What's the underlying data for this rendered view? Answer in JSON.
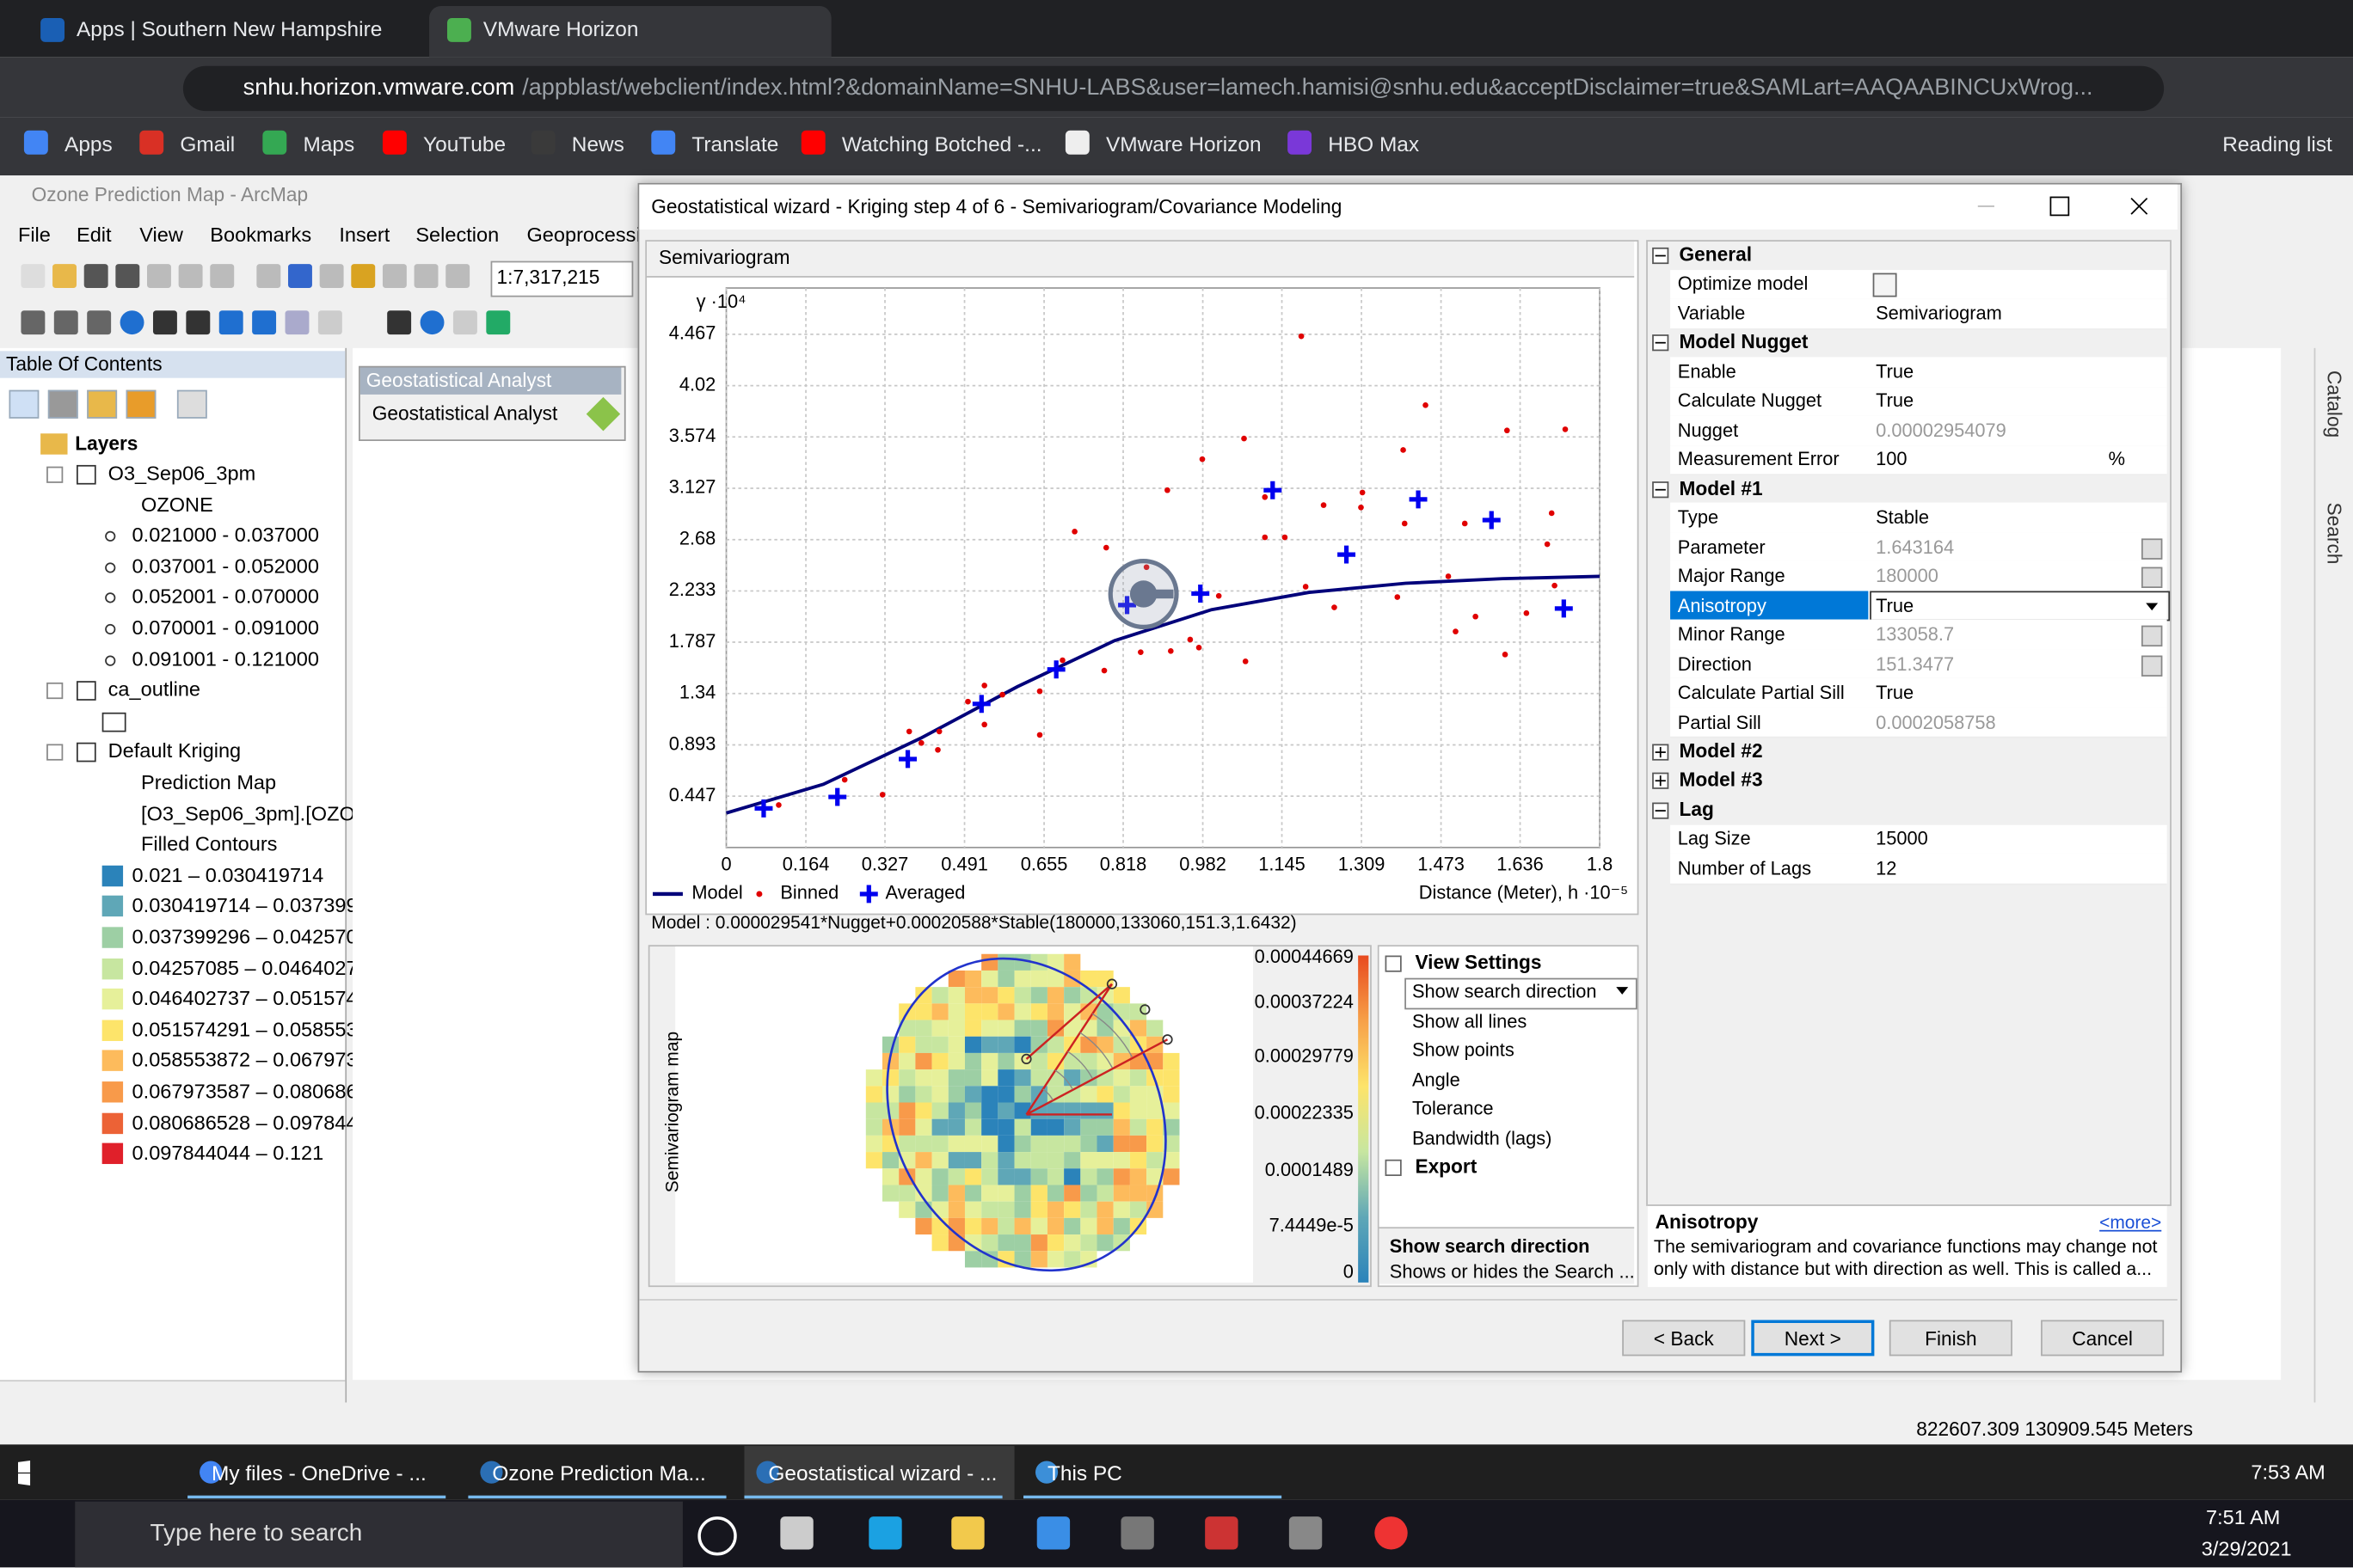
{
  "browser": {
    "tabs": [
      {
        "title": "Apps | Southern New Hampshire"
      },
      {
        "title": "VMware Horizon",
        "active": true
      }
    ],
    "url_host": "snhu.horizon.vmware.com",
    "url_path": "/appblast/webclient/index.html?&domainName=SNHU-LABS&user=lamech.hamisi@snhu.edu&acceptDisclaimer=true&SAMLart=AAQAABINCUxWrog...",
    "bookmarks": [
      "Apps",
      "Gmail",
      "Maps",
      "YouTube",
      "News",
      "Translate",
      "Watching Botched -...",
      "VMware Horizon",
      "HBO Max"
    ],
    "reading_list": "Reading list"
  },
  "arcmap": {
    "title": "Ozone Prediction Map - ArcMap",
    "menu": [
      "File",
      "Edit",
      "View",
      "Bookmarks",
      "Insert",
      "Selection",
      "Geoprocessi"
    ],
    "scale": "1:7,317,215",
    "ga_toolbar": {
      "title": "Geostatistical Analyst",
      "button": "Geostatistical Analyst"
    },
    "toc": {
      "title": "Table Of Contents",
      "root": "Layers",
      "layers": [
        {
          "name_lines": [
            "O3_Sep06_3pm"
          ],
          "field": "OZONE",
          "classes": [
            {
              "label": "0.021000 - 0.037000"
            },
            {
              "label": "0.037001 - 0.052000"
            },
            {
              "label": "0.052001 - 0.070000"
            },
            {
              "label": "0.070001 - 0.091000"
            },
            {
              "label": "0.091001 - 0.121000"
            }
          ]
        },
        {
          "name_lines": [
            "ca_outline"
          ],
          "outline": true
        },
        {
          "name_lines": [
            "Default Kriging",
            "Prediction Map",
            "[O3_Sep06_3pm].[OZO"
          ],
          "field": "Filled Contours",
          "classes": [
            {
              "label": "0.021 – 0.030419714",
              "color": "#2b83ba"
            },
            {
              "label": "0.030419714 – 0.037399",
              "color": "#5fa7b7"
            },
            {
              "label": "0.037399296 – 0.042570",
              "color": "#9dcfa4"
            },
            {
              "label": "0.04257085 – 0.0464027",
              "color": "#c7e6a0"
            },
            {
              "label": "0.046402737 – 0.051574",
              "color": "#e6f09a"
            },
            {
              "label": "0.051574291 – 0.058553",
              "color": "#fde46a"
            },
            {
              "label": "0.058553872 – 0.067973",
              "color": "#fdbb5c"
            },
            {
              "label": "0.067973587 – 0.080686",
              "color": "#f89a4a"
            },
            {
              "label": "0.080686528 – 0.097844",
              "color": "#ec6236"
            },
            {
              "label": "0.097844044 – 0.121",
              "color": "#e0202a"
            }
          ]
        }
      ]
    },
    "side_tabs": [
      "Catalog",
      "Search"
    ],
    "status": "822607.309  130909.545 Meters"
  },
  "wizard": {
    "title": "Geostatistical wizard - Kriging step 4 of 6 - Semivariogram/Covariance Modeling",
    "panel": "Semivariogram",
    "semivariogram": {
      "type": "scatter",
      "y_label": "γ ·10⁴",
      "x_label": "Distance (Meter), h ·10⁻⁵",
      "xlim": [
        0,
        1.8
      ],
      "ylim": [
        0,
        4.87
      ],
      "xticks": [
        0,
        0.164,
        0.327,
        0.491,
        0.655,
        0.818,
        0.982,
        1.145,
        1.309,
        1.473,
        1.636,
        1.8
      ],
      "yticks": [
        0.447,
        0.893,
        1.34,
        1.787,
        2.233,
        2.68,
        3.127,
        3.574,
        4.02,
        4.467
      ],
      "grid": true,
      "series": [
        {
          "name": "Model",
          "color": "#00007a",
          "marker": "line",
          "x": [
            0,
            0.2,
            0.4,
            0.6,
            0.8,
            1.0,
            1.2,
            1.4,
            1.6,
            1.8
          ],
          "values": [
            0.3,
            0.55,
            0.95,
            1.4,
            1.8,
            2.07,
            2.22,
            2.3,
            2.34,
            2.36
          ]
        },
        {
          "name": "Binned",
          "color": "#e00000",
          "marker": "dot",
          "x": [
            0.108,
            0.244,
            0.322,
            0.377,
            0.402,
            0.439,
            0.436,
            0.532,
            0.532,
            0.498,
            0.569,
            0.646,
            0.646,
            0.693,
            0.718,
            0.783,
            0.779,
            0.866,
            0.854,
            0.909,
            0.916,
            0.956,
            0.981,
            0.974,
            1.015,
            1.067,
            1.07,
            1.11,
            1.11,
            1.151,
            1.185,
            1.194,
            1.231,
            1.253,
            1.311,
            1.308,
            1.383,
            1.395,
            1.398,
            1.441,
            1.488,
            1.503,
            1.522,
            1.544,
            1.609,
            1.605,
            1.649,
            1.701,
            1.707,
            1.729,
            1.692
          ],
          "values": [
            0.37,
            0.59,
            0.46,
            1.01,
            0.91,
            1.01,
            0.85,
            1.41,
            1.07,
            1.27,
            1.33,
            0.98,
            1.36,
            1.63,
            2.75,
            2.61,
            1.54,
            2.44,
            1.7,
            3.11,
            1.71,
            1.81,
            3.38,
            1.74,
            2.19,
            3.56,
            1.62,
            3.05,
            2.7,
            2.7,
            4.45,
            2.27,
            2.98,
            2.09,
            3.09,
            2.96,
            2.18,
            3.46,
            2.82,
            3.85,
            2.36,
            1.88,
            2.82,
            2.01,
            3.63,
            1.68,
            2.04,
            2.91,
            2.28,
            3.64,
            2.64
          ]
        },
        {
          "name": "Averaged",
          "color": "#0000ee",
          "marker": "cross",
          "x": [
            0.077,
            0.229,
            0.374,
            0.526,
            0.68,
            0.826,
            0.977,
            1.126,
            1.278,
            1.426,
            1.577,
            1.726
          ],
          "values": [
            0.34,
            0.44,
            0.77,
            1.25,
            1.55,
            2.11,
            2.21,
            3.11,
            2.55,
            3.03,
            2.85,
            2.08
          ]
        }
      ]
    },
    "model_formula": "Model : 0.000029541*Nugget+0.00020588*Stable(180000,133060,151.3,1.6432)",
    "map": {
      "axis_label": "Semivariogram map",
      "colorbar_labels": [
        "0.00044669",
        "0.00037224",
        "0.00029779",
        "0.00022335",
        "0.0001489",
        "7.4449e-5",
        "0"
      ]
    },
    "view_settings": {
      "title": "View Settings",
      "rows": [
        {
          "name": "Show search direction",
          "editor": "dropdown"
        },
        {
          "name": "Show all lines"
        },
        {
          "name": "Show points"
        },
        {
          "name": "Angle"
        },
        {
          "name": "Tolerance"
        },
        {
          "name": "Bandwidth (lags)"
        }
      ],
      "export": "Export",
      "help_title": "Show search direction",
      "help_text": "Shows or hides the Search ..."
    },
    "properties": [
      {
        "title": "General",
        "expanded": true,
        "rows": [
          {
            "name": "Optimize model",
            "editor": "optimize"
          },
          {
            "name": "Variable",
            "value": "Semivariogram"
          }
        ]
      },
      {
        "title": "Model Nugget",
        "expanded": true,
        "rows": [
          {
            "name": "Enable",
            "value": "True"
          },
          {
            "name": "Calculate Nugget",
            "value": "True"
          },
          {
            "name": "Nugget",
            "value": "0.00002954079",
            "disabled": true
          },
          {
            "name": "Measurement Error",
            "value": "100",
            "unit": "%"
          }
        ]
      },
      {
        "title": "Model #1",
        "expanded": true,
        "rows": [
          {
            "name": "Type",
            "value": "Stable"
          },
          {
            "name": "Parameter",
            "value": "1.643164",
            "disabled": true,
            "editor": "calculator"
          },
          {
            "name": "Major Range",
            "value": "180000",
            "disabled": true,
            "editor": "calculator"
          },
          {
            "name": "Anisotropy",
            "value": "True",
            "selected": true,
            "editor": "dropdown"
          },
          {
            "name": "Minor Range",
            "value": "133058.7",
            "disabled": true,
            "editor": "calculator"
          },
          {
            "name": "Direction",
            "value": "151.3477",
            "disabled": true,
            "editor": "calculator"
          },
          {
            "name": "Calculate Partial Sill",
            "value": "True"
          },
          {
            "name": "Partial Sill",
            "value": "0.0002058758",
            "disabled": true
          }
        ]
      },
      {
        "title": "Model #2",
        "expanded": false
      },
      {
        "title": "Model #3",
        "expanded": false
      },
      {
        "title": "Lag",
        "expanded": true,
        "rows": [
          {
            "name": "Lag Size",
            "value": "15000"
          },
          {
            "name": "Number of Lags",
            "value": "12"
          }
        ]
      }
    ],
    "help": {
      "title": "Anisotropy",
      "more": "<more>",
      "text": "The semivariogram and covariance functions may change not only with distance but with direction as well. This is called a..."
    },
    "buttons": [
      "< Back",
      "Next >",
      "Finish",
      "Cancel"
    ]
  },
  "remote_taskbar": {
    "windows": [
      {
        "title": "My files - OneDrive - ..."
      },
      {
        "title": "Ozone Prediction Ma..."
      },
      {
        "title": "Geostatistical wizard - ...",
        "active": true
      },
      {
        "title": "This PC"
      }
    ],
    "time": "7:53 AM"
  },
  "host_taskbar": {
    "search": "Type here to search",
    "time": "7:51 AM",
    "date": "3/29/2021"
  }
}
